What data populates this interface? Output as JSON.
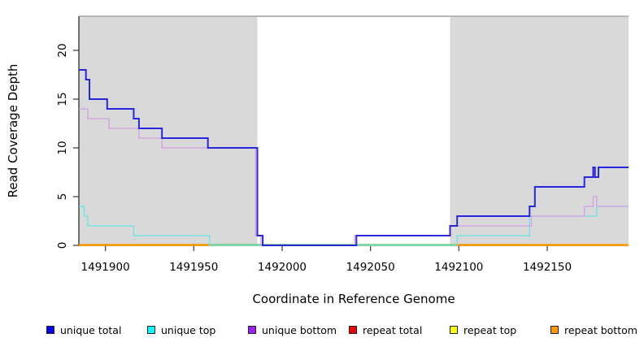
{
  "chart_data": {
    "type": "line",
    "step": true,
    "title": "",
    "xlabel": "Coordinate in Reference Genome",
    "ylabel": "Read Coverage Depth",
    "xlim": [
      1491885,
      1492196
    ],
    "ylim": [
      0,
      23.5
    ],
    "x_ticks": [
      1491900,
      1491950,
      1492000,
      1492050,
      1492100,
      1492150
    ],
    "y_ticks": [
      0,
      5,
      10,
      15,
      20
    ],
    "grid": false,
    "legend_position": "bottom",
    "shade_color": "#d9d9d9",
    "shaded_regions": [
      {
        "from": 1491885,
        "to": 1491986
      },
      {
        "from": 1492095,
        "to": 1492196
      }
    ],
    "zero_line_segments": [
      {
        "color": "#ff9800",
        "from": 1491885,
        "to": 1491959
      },
      {
        "color": "#70c870",
        "from": 1491959,
        "to": 1492098
      },
      {
        "color": "#ff9800",
        "from": 1492098,
        "to": 1492196
      }
    ],
    "series": [
      {
        "name": "repeat total",
        "color": "#dd0000",
        "width": 1.2,
        "points": [
          [
            1491885,
            0
          ],
          [
            1492196,
            0
          ]
        ]
      },
      {
        "name": "repeat top",
        "color": "#ffff00",
        "width": 1.2,
        "points": [
          [
            1491885,
            0
          ],
          [
            1492196,
            0
          ]
        ]
      },
      {
        "name": "repeat bottom",
        "color": "#ff9800",
        "width": 1.6,
        "points": [
          [
            1491885,
            0
          ],
          [
            1492196,
            0
          ]
        ]
      },
      {
        "name": "unique top",
        "color": "#63e6e6",
        "width": 1.3,
        "points": [
          [
            1491885,
            4
          ],
          [
            1491888,
            3
          ],
          [
            1491890,
            2
          ],
          [
            1491916,
            1
          ],
          [
            1491959,
            0
          ],
          [
            1492099,
            1
          ],
          [
            1492140,
            3
          ],
          [
            1492178,
            4
          ],
          [
            1492196,
            4
          ]
        ]
      },
      {
        "name": "unique bottom",
        "color": "#d49de6",
        "width": 1.3,
        "points": [
          [
            1491885,
            14
          ],
          [
            1491890,
            13
          ],
          [
            1491902,
            12
          ],
          [
            1491919,
            11
          ],
          [
            1491932,
            10
          ],
          [
            1491985,
            1
          ],
          [
            1491988,
            0
          ],
          [
            1492041,
            1
          ],
          [
            1492095,
            2
          ],
          [
            1492141,
            3
          ],
          [
            1492171,
            4
          ],
          [
            1492176,
            5
          ],
          [
            1492178,
            4
          ],
          [
            1492196,
            4
          ]
        ]
      },
      {
        "name": "unique total",
        "color": "#2727dd",
        "width": 2,
        "points": [
          [
            1491885,
            18
          ],
          [
            1491889,
            17
          ],
          [
            1491891,
            15
          ],
          [
            1491901,
            14
          ],
          [
            1491916,
            13
          ],
          [
            1491919,
            12
          ],
          [
            1491932,
            11
          ],
          [
            1491958,
            10
          ],
          [
            1491986,
            1
          ],
          [
            1491989,
            0
          ],
          [
            1492042,
            1
          ],
          [
            1492095,
            2
          ],
          [
            1492099,
            3
          ],
          [
            1492140,
            4
          ],
          [
            1492143,
            6
          ],
          [
            1492171,
            7
          ],
          [
            1492176,
            8
          ],
          [
            1492177,
            7
          ],
          [
            1492179,
            8
          ],
          [
            1492196,
            8
          ]
        ]
      }
    ]
  },
  "legend": {
    "items": [
      {
        "label": "unique total",
        "color": "#0000ee"
      },
      {
        "label": "unique top",
        "color": "#00ffff"
      },
      {
        "label": "unique bottom",
        "color": "#a020f0"
      },
      {
        "label": "repeat total",
        "color": "#ee0000"
      },
      {
        "label": "repeat top",
        "color": "#ffff00"
      },
      {
        "label": "repeat bottom",
        "color": "#ff9800"
      }
    ]
  }
}
